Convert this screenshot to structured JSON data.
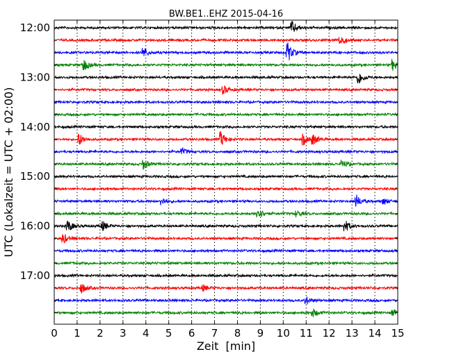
{
  "chart_data": {
    "type": "line",
    "title": "BW.BE1..EHZ 2015-04-16",
    "xlabel": "Zeit  [min]",
    "ylabel": "UTC (Lokalzeit = UTC + 02:00)",
    "xlim": [
      0,
      15
    ],
    "x_ticks": [
      "0",
      "1",
      "2",
      "3",
      "4",
      "5",
      "6",
      "7",
      "8",
      "9",
      "10",
      "11",
      "12",
      "13",
      "14",
      "15"
    ],
    "y_ticks": [
      "12:00",
      "13:00",
      "14:00",
      "15:00",
      "16:00",
      "17:00"
    ],
    "grid": "vertical dotted lines at each minute",
    "trace_colors": [
      "#000000",
      "#ff0000",
      "#0000ff",
      "#008000"
    ],
    "traces": [
      {
        "start": "12:00",
        "events": [
          [
            10.4,
            0.6
          ]
        ]
      },
      {
        "start": "12:15",
        "events": [
          [
            12.5,
            0.6
          ]
        ]
      },
      {
        "start": "12:30",
        "events": [
          [
            3.9,
            0.5
          ],
          [
            10.2,
            1.0
          ]
        ]
      },
      {
        "start": "12:45",
        "events": [
          [
            1.3,
            0.6
          ],
          [
            14.8,
            0.5
          ]
        ]
      },
      {
        "start": "13:00",
        "events": [
          [
            13.3,
            0.7
          ]
        ]
      },
      {
        "start": "13:15",
        "events": [
          [
            7.4,
            0.4
          ]
        ]
      },
      {
        "start": "13:30",
        "events": []
      },
      {
        "start": "13:45",
        "events": []
      },
      {
        "start": "14:00",
        "events": []
      },
      {
        "start": "14:15",
        "events": [
          [
            1.1,
            0.6
          ],
          [
            7.3,
            0.7
          ],
          [
            10.9,
            0.5
          ],
          [
            11.3,
            0.5
          ]
        ]
      },
      {
        "start": "14:30",
        "events": [
          [
            5.6,
            0.3
          ]
        ]
      },
      {
        "start": "14:45",
        "events": [
          [
            3.9,
            0.5
          ],
          [
            12.6,
            0.4
          ]
        ]
      },
      {
        "start": "15:00",
        "events": []
      },
      {
        "start": "15:15",
        "events": []
      },
      {
        "start": "15:30",
        "events": [
          [
            4.7,
            0.4
          ],
          [
            13.2,
            0.6
          ],
          [
            14.4,
            0.3
          ]
        ]
      },
      {
        "start": "15:45",
        "events": [
          [
            8.9,
            0.6
          ],
          [
            10.6,
            0.3
          ]
        ]
      },
      {
        "start": "16:00",
        "events": [
          [
            0.6,
            0.6
          ],
          [
            2.1,
            0.5
          ],
          [
            12.7,
            0.6
          ]
        ]
      },
      {
        "start": "16:15",
        "events": [
          [
            0.4,
            0.5
          ]
        ]
      },
      {
        "start": "16:30",
        "events": []
      },
      {
        "start": "16:45",
        "events": []
      },
      {
        "start": "17:00",
        "events": []
      },
      {
        "start": "17:15",
        "events": [
          [
            1.2,
            0.5
          ],
          [
            6.5,
            0.3
          ]
        ]
      },
      {
        "start": "17:30",
        "events": [
          [
            11.0,
            0.4
          ]
        ]
      },
      {
        "start": "17:45",
        "events": [
          [
            11.3,
            0.4
          ],
          [
            14.8,
            0.3
          ]
        ]
      }
    ]
  }
}
